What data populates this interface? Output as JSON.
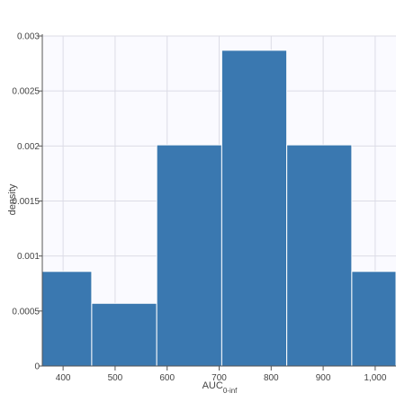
{
  "chart_data": {
    "type": "histogram",
    "xlabel": "AUC",
    "xlabel_subscript": "0-inf",
    "ylabel": "density",
    "xlim": [
      360,
      1040
    ],
    "ylim": [
      0,
      0.003
    ],
    "bins": [
      {
        "start": 360,
        "end": 455,
        "density": 0.00086
      },
      {
        "start": 455,
        "end": 580,
        "density": 0.00057
      },
      {
        "start": 580,
        "end": 705,
        "density": 0.00201
      },
      {
        "start": 705,
        "end": 830,
        "density": 0.00287
      },
      {
        "start": 830,
        "end": 955,
        "density": 0.00201
      },
      {
        "start": 955,
        "end": 1040,
        "density": 0.00086
      }
    ],
    "x_ticks": [
      {
        "value": 400,
        "label": "400"
      },
      {
        "value": 500,
        "label": "500"
      },
      {
        "value": 600,
        "label": "600"
      },
      {
        "value": 700,
        "label": "700"
      },
      {
        "value": 800,
        "label": "800"
      },
      {
        "value": 900,
        "label": "900"
      },
      {
        "value": 1000,
        "label": "1,000"
      }
    ],
    "y_ticks": [
      {
        "value": 0,
        "label": "0"
      },
      {
        "value": 0.0005,
        "label": "0.0005"
      },
      {
        "value": 0.001,
        "label": "0.001"
      },
      {
        "value": 0.0015,
        "label": "0.0015"
      },
      {
        "value": 0.002,
        "label": "0.002"
      },
      {
        "value": 0.0025,
        "label": "0.0025"
      },
      {
        "value": 0.003,
        "label": "0.003"
      }
    ],
    "grid": true,
    "bar_color": "#3a78b0",
    "plot_background": "#fafaff",
    "grid_color": "#dcdce6"
  }
}
